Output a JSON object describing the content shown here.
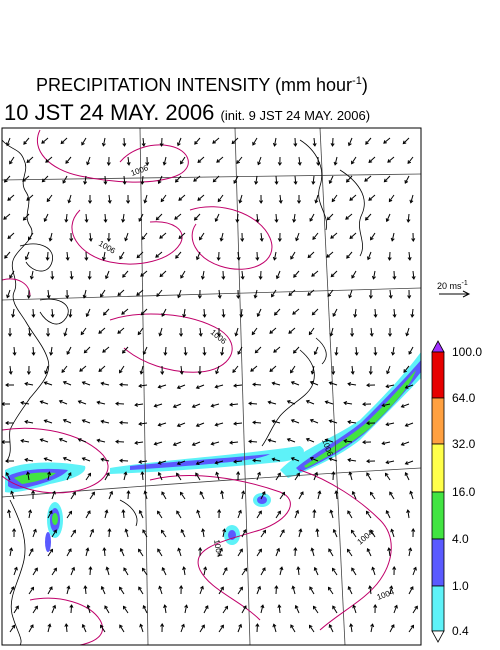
{
  "title": {
    "main": "PRECIPITATION INTENSITY (mm hour",
    "main_sup": "-1",
    "main_close": ")",
    "time": "10 JST 24 MAY. 2006",
    "init": "(init. 9 JST 24 MAY. 2006)"
  },
  "isobars": [
    {
      "label": "1006"
    },
    {
      "label": "1006"
    },
    {
      "label": "1006"
    },
    {
      "label": "1006"
    },
    {
      "label": "1004"
    },
    {
      "label": "1004"
    },
    {
      "label": "1004"
    }
  ],
  "wind_reference": {
    "speed": "20 ms",
    "unit_sup": "-1"
  },
  "colorbar": {
    "unit": "mm hour-1",
    "levels": [
      "0.4",
      "1.0",
      "4.0",
      "16.0",
      "32.0",
      "64.0",
      "100.0"
    ],
    "colors": [
      "#5ef2f8",
      "#5a5aff",
      "#42e442",
      "#ffff4a",
      "#ffa040",
      "#e60000",
      "#a030ff"
    ]
  },
  "colors": {
    "isobar": "#c0006a",
    "grid": "#444444",
    "coast": "#000000",
    "arrow": "#000000"
  }
}
